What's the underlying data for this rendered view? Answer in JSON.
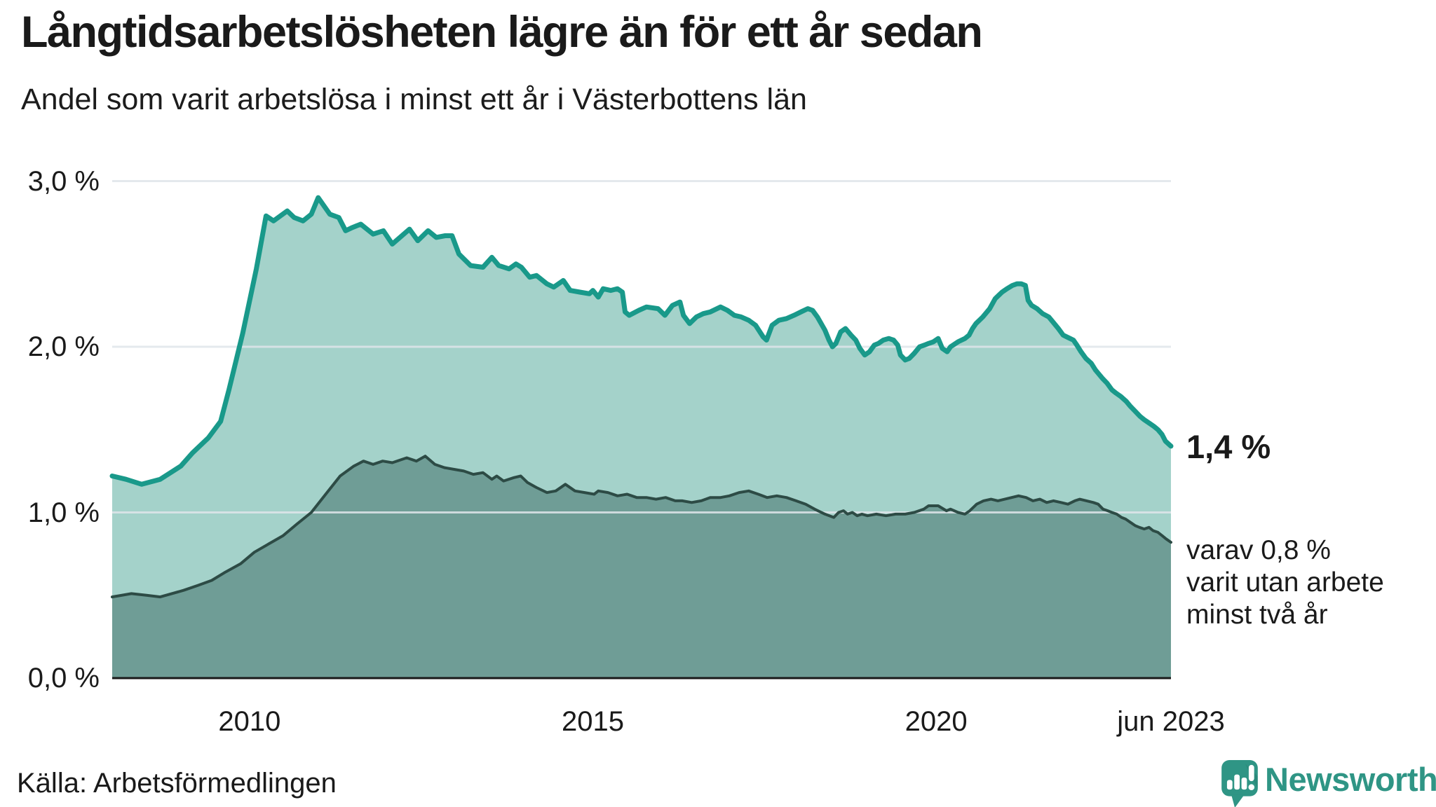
{
  "header": {
    "title": "Långtidsarbetslösheten lägre än för ett år sedan",
    "subtitle": "Andel som varit arbetslösa i minst ett år i Västerbottens län"
  },
  "footer": {
    "source": "Källa: Arbetsförmedlingen"
  },
  "logo": {
    "name": "Newsworthy",
    "color": "#2f9585",
    "icon": "newsworthy-speech-bubble-bar-chart-icon"
  },
  "chart_data": {
    "type": "area",
    "title": "Långtidsarbetslösheten lägre än för ett år sedan",
    "subtitle": "Andel som varit arbetslösa i minst ett år i Västerbottens län",
    "source": "Källa: Arbetsförmedlingen",
    "x_range": [
      2008.0,
      2023.42
    ],
    "ylim": [
      0,
      3.0
    ],
    "grid": true,
    "legend": "none",
    "gridline_color": "#dfe5ea",
    "axis_color": "#1a1a1a",
    "y_ticks": [
      {
        "label": "0,0 %",
        "value": 0.0
      },
      {
        "label": "1,0 %",
        "value": 1.0
      },
      {
        "label": "2,0 %",
        "value": 2.0
      },
      {
        "label": "3,0 %",
        "value": 3.0
      }
    ],
    "x_ticks": [
      {
        "label": "2010",
        "year": 2010.0
      },
      {
        "label": "2015",
        "year": 2015.0
      },
      {
        "label": "2020",
        "year": 2020.0
      },
      {
        "label": "jun 2023",
        "year": 2023.42
      }
    ],
    "annotations": {
      "end_value_label": "1,4 %",
      "end_value": 1.4,
      "note": "varav 0,8 %\nvarit utan arbete\nminst två år",
      "note_value": 0.8
    },
    "series": [
      {
        "name": "Arbetslösa minst ett år",
        "color": "#19998a",
        "fill": "#a4d2ca",
        "line_width": 7,
        "points": [
          [
            2008.0,
            1.22
          ],
          [
            2008.2,
            1.2
          ],
          [
            2008.43,
            1.17
          ],
          [
            2008.7,
            1.2
          ],
          [
            2009.0,
            1.28
          ],
          [
            2009.17,
            1.36
          ],
          [
            2009.4,
            1.45
          ],
          [
            2009.58,
            1.55
          ],
          [
            2009.7,
            1.74
          ],
          [
            2009.9,
            2.08
          ],
          [
            2010.1,
            2.47
          ],
          [
            2010.24,
            2.79
          ],
          [
            2010.35,
            2.76
          ],
          [
            2010.45,
            2.79
          ],
          [
            2010.55,
            2.82
          ],
          [
            2010.65,
            2.78
          ],
          [
            2010.78,
            2.76
          ],
          [
            2010.9,
            2.8
          ],
          [
            2011.0,
            2.9
          ],
          [
            2011.17,
            2.8
          ],
          [
            2011.3,
            2.78
          ],
          [
            2011.4,
            2.7
          ],
          [
            2011.5,
            2.72
          ],
          [
            2011.62,
            2.74
          ],
          [
            2011.8,
            2.68
          ],
          [
            2011.95,
            2.7
          ],
          [
            2012.08,
            2.62
          ],
          [
            2012.33,
            2.71
          ],
          [
            2012.45,
            2.64
          ],
          [
            2012.6,
            2.7
          ],
          [
            2012.72,
            2.66
          ],
          [
            2012.85,
            2.67
          ],
          [
            2012.95,
            2.67
          ],
          [
            2013.05,
            2.56
          ],
          [
            2013.22,
            2.49
          ],
          [
            2013.4,
            2.48
          ],
          [
            2013.53,
            2.54
          ],
          [
            2013.63,
            2.49
          ],
          [
            2013.78,
            2.47
          ],
          [
            2013.88,
            2.5
          ],
          [
            2013.96,
            2.48
          ],
          [
            2014.08,
            2.42
          ],
          [
            2014.18,
            2.43
          ],
          [
            2014.33,
            2.38
          ],
          [
            2014.43,
            2.36
          ],
          [
            2014.57,
            2.4
          ],
          [
            2014.67,
            2.34
          ],
          [
            2014.81,
            2.33
          ],
          [
            2014.95,
            2.32
          ],
          [
            2015.0,
            2.34
          ],
          [
            2015.08,
            2.3
          ],
          [
            2015.15,
            2.35
          ],
          [
            2015.26,
            2.34
          ],
          [
            2015.36,
            2.35
          ],
          [
            2015.43,
            2.33
          ],
          [
            2015.47,
            2.21
          ],
          [
            2015.53,
            2.19
          ],
          [
            2015.67,
            2.22
          ],
          [
            2015.78,
            2.24
          ],
          [
            2015.95,
            2.23
          ],
          [
            2016.05,
            2.19
          ],
          [
            2016.16,
            2.25
          ],
          [
            2016.27,
            2.27
          ],
          [
            2016.32,
            2.19
          ],
          [
            2016.41,
            2.14
          ],
          [
            2016.51,
            2.18
          ],
          [
            2016.61,
            2.2
          ],
          [
            2016.71,
            2.21
          ],
          [
            2016.86,
            2.24
          ],
          [
            2016.96,
            2.22
          ],
          [
            2017.06,
            2.19
          ],
          [
            2017.16,
            2.18
          ],
          [
            2017.27,
            2.16
          ],
          [
            2017.37,
            2.13
          ],
          [
            2017.48,
            2.06
          ],
          [
            2017.53,
            2.04
          ],
          [
            2017.61,
            2.13
          ],
          [
            2017.71,
            2.16
          ],
          [
            2017.82,
            2.17
          ],
          [
            2017.93,
            2.19
          ],
          [
            2018.03,
            2.21
          ],
          [
            2018.13,
            2.23
          ],
          [
            2018.2,
            2.22
          ],
          [
            2018.27,
            2.18
          ],
          [
            2018.38,
            2.1
          ],
          [
            2018.44,
            2.04
          ],
          [
            2018.49,
            2.0
          ],
          [
            2018.54,
            2.02
          ],
          [
            2018.61,
            2.09
          ],
          [
            2018.68,
            2.11
          ],
          [
            2018.76,
            2.07
          ],
          [
            2018.83,
            2.04
          ],
          [
            2018.89,
            1.99
          ],
          [
            2018.96,
            1.95
          ],
          [
            2019.03,
            1.97
          ],
          [
            2019.1,
            2.01
          ],
          [
            2019.16,
            2.02
          ],
          [
            2019.23,
            2.04
          ],
          [
            2019.31,
            2.05
          ],
          [
            2019.38,
            2.04
          ],
          [
            2019.44,
            2.01
          ],
          [
            2019.48,
            1.95
          ],
          [
            2019.55,
            1.92
          ],
          [
            2019.61,
            1.93
          ],
          [
            2019.68,
            1.96
          ],
          [
            2019.76,
            2.0
          ],
          [
            2019.83,
            2.01
          ],
          [
            2019.89,
            2.02
          ],
          [
            2019.96,
            2.03
          ],
          [
            2020.03,
            2.05
          ],
          [
            2020.09,
            1.99
          ],
          [
            2020.16,
            1.97
          ],
          [
            2020.21,
            2.0
          ],
          [
            2020.32,
            2.03
          ],
          [
            2020.42,
            2.05
          ],
          [
            2020.48,
            2.07
          ],
          [
            2020.53,
            2.11
          ],
          [
            2020.58,
            2.14
          ],
          [
            2020.68,
            2.18
          ],
          [
            2020.78,
            2.23
          ],
          [
            2020.86,
            2.29
          ],
          [
            2020.91,
            2.31
          ],
          [
            2020.96,
            2.33
          ],
          [
            2021.03,
            2.35
          ],
          [
            2021.11,
            2.37
          ],
          [
            2021.18,
            2.38
          ],
          [
            2021.24,
            2.38
          ],
          [
            2021.3,
            2.37
          ],
          [
            2021.34,
            2.28
          ],
          [
            2021.39,
            2.25
          ],
          [
            2021.47,
            2.23
          ],
          [
            2021.55,
            2.2
          ],
          [
            2021.64,
            2.18
          ],
          [
            2021.7,
            2.15
          ],
          [
            2021.78,
            2.11
          ],
          [
            2021.85,
            2.07
          ],
          [
            2021.9,
            2.06
          ],
          [
            2021.95,
            2.05
          ],
          [
            2022.0,
            2.04
          ],
          [
            2022.05,
            2.01
          ],
          [
            2022.11,
            1.97
          ],
          [
            2022.18,
            1.93
          ],
          [
            2022.26,
            1.9
          ],
          [
            2022.32,
            1.86
          ],
          [
            2022.36,
            1.84
          ],
          [
            2022.42,
            1.81
          ],
          [
            2022.49,
            1.78
          ],
          [
            2022.56,
            1.74
          ],
          [
            2022.62,
            1.72
          ],
          [
            2022.69,
            1.7
          ],
          [
            2022.77,
            1.67
          ],
          [
            2022.83,
            1.64
          ],
          [
            2022.9,
            1.61
          ],
          [
            2022.97,
            1.58
          ],
          [
            2023.03,
            1.56
          ],
          [
            2023.1,
            1.54
          ],
          [
            2023.17,
            1.52
          ],
          [
            2023.23,
            1.5
          ],
          [
            2023.29,
            1.47
          ],
          [
            2023.34,
            1.43
          ],
          [
            2023.42,
            1.4
          ]
        ]
      },
      {
        "name": "varav arbetslösa minst två år",
        "color": "#2d4b45",
        "fill": "#6f9d96",
        "line_width": 4,
        "points": [
          [
            2008.0,
            0.49
          ],
          [
            2008.28,
            0.51
          ],
          [
            2008.5,
            0.5
          ],
          [
            2008.7,
            0.49
          ],
          [
            2009.04,
            0.53
          ],
          [
            2009.25,
            0.56
          ],
          [
            2009.45,
            0.59
          ],
          [
            2009.65,
            0.64
          ],
          [
            2009.87,
            0.69
          ],
          [
            2010.07,
            0.76
          ],
          [
            2010.28,
            0.81
          ],
          [
            2010.49,
            0.86
          ],
          [
            2010.69,
            0.93
          ],
          [
            2010.9,
            1.0
          ],
          [
            2011.11,
            1.11
          ],
          [
            2011.32,
            1.22
          ],
          [
            2011.52,
            1.28
          ],
          [
            2011.66,
            1.31
          ],
          [
            2011.8,
            1.29
          ],
          [
            2011.94,
            1.31
          ],
          [
            2012.08,
            1.3
          ],
          [
            2012.29,
            1.33
          ],
          [
            2012.43,
            1.31
          ],
          [
            2012.56,
            1.34
          ],
          [
            2012.7,
            1.29
          ],
          [
            2012.84,
            1.27
          ],
          [
            2012.98,
            1.26
          ],
          [
            2013.12,
            1.25
          ],
          [
            2013.26,
            1.23
          ],
          [
            2013.4,
            1.24
          ],
          [
            2013.53,
            1.2
          ],
          [
            2013.6,
            1.22
          ],
          [
            2013.7,
            1.19
          ],
          [
            2013.85,
            1.21
          ],
          [
            2013.95,
            1.22
          ],
          [
            2014.05,
            1.18
          ],
          [
            2014.18,
            1.15
          ],
          [
            2014.33,
            1.12
          ],
          [
            2014.46,
            1.13
          ],
          [
            2014.6,
            1.17
          ],
          [
            2014.74,
            1.13
          ],
          [
            2014.88,
            1.12
          ],
          [
            2015.02,
            1.11
          ],
          [
            2015.08,
            1.13
          ],
          [
            2015.22,
            1.12
          ],
          [
            2015.36,
            1.1
          ],
          [
            2015.5,
            1.11
          ],
          [
            2015.64,
            1.09
          ],
          [
            2015.78,
            1.09
          ],
          [
            2015.92,
            1.08
          ],
          [
            2016.06,
            1.09
          ],
          [
            2016.2,
            1.07
          ],
          [
            2016.3,
            1.07
          ],
          [
            2016.44,
            1.06
          ],
          [
            2016.58,
            1.07
          ],
          [
            2016.71,
            1.09
          ],
          [
            2016.86,
            1.09
          ],
          [
            2016.99,
            1.1
          ],
          [
            2017.13,
            1.12
          ],
          [
            2017.27,
            1.13
          ],
          [
            2017.41,
            1.11
          ],
          [
            2017.54,
            1.09
          ],
          [
            2017.68,
            1.1
          ],
          [
            2017.82,
            1.09
          ],
          [
            2017.96,
            1.07
          ],
          [
            2018.1,
            1.05
          ],
          [
            2018.23,
            1.02
          ],
          [
            2018.38,
            0.99
          ],
          [
            2018.51,
            0.97
          ],
          [
            2018.58,
            1.0
          ],
          [
            2018.65,
            1.01
          ],
          [
            2018.71,
            0.99
          ],
          [
            2018.78,
            1.0
          ],
          [
            2018.85,
            0.98
          ],
          [
            2018.92,
            0.99
          ],
          [
            2019.0,
            0.98
          ],
          [
            2019.13,
            0.99
          ],
          [
            2019.27,
            0.98
          ],
          [
            2019.41,
            0.99
          ],
          [
            2019.55,
            0.99
          ],
          [
            2019.68,
            1.0
          ],
          [
            2019.82,
            1.02
          ],
          [
            2019.89,
            1.04
          ],
          [
            2020.03,
            1.04
          ],
          [
            2020.15,
            1.01
          ],
          [
            2020.21,
            1.02
          ],
          [
            2020.32,
            1.0
          ],
          [
            2020.42,
            0.99
          ],
          [
            2020.49,
            1.01
          ],
          [
            2020.59,
            1.05
          ],
          [
            2020.69,
            1.07
          ],
          [
            2020.8,
            1.08
          ],
          [
            2020.9,
            1.07
          ],
          [
            2021.0,
            1.08
          ],
          [
            2021.1,
            1.09
          ],
          [
            2021.2,
            1.1
          ],
          [
            2021.31,
            1.09
          ],
          [
            2021.41,
            1.07
          ],
          [
            2021.51,
            1.08
          ],
          [
            2021.61,
            1.06
          ],
          [
            2021.71,
            1.07
          ],
          [
            2021.82,
            1.06
          ],
          [
            2021.92,
            1.05
          ],
          [
            2022.02,
            1.07
          ],
          [
            2022.09,
            1.08
          ],
          [
            2022.19,
            1.07
          ],
          [
            2022.29,
            1.06
          ],
          [
            2022.36,
            1.05
          ],
          [
            2022.43,
            1.02
          ],
          [
            2022.5,
            1.01
          ],
          [
            2022.56,
            1.0
          ],
          [
            2022.63,
            0.99
          ],
          [
            2022.7,
            0.97
          ],
          [
            2022.76,
            0.96
          ],
          [
            2022.83,
            0.94
          ],
          [
            2022.9,
            0.92
          ],
          [
            2022.96,
            0.91
          ],
          [
            2023.03,
            0.9
          ],
          [
            2023.1,
            0.91
          ],
          [
            2023.16,
            0.89
          ],
          [
            2023.23,
            0.88
          ],
          [
            2023.29,
            0.86
          ],
          [
            2023.35,
            0.84
          ],
          [
            2023.42,
            0.82
          ]
        ]
      }
    ]
  }
}
